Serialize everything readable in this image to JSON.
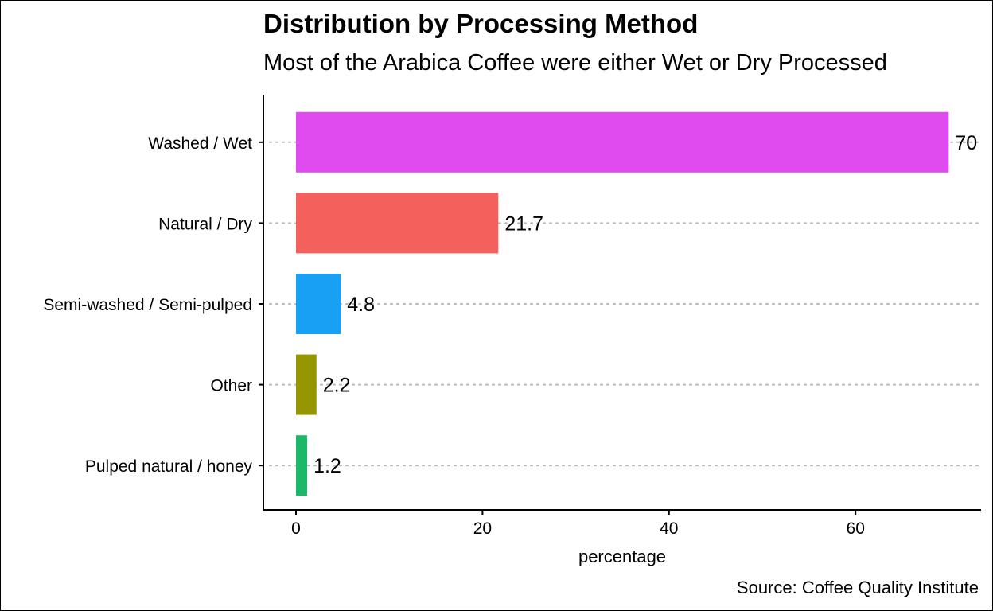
{
  "chart_data": {
    "type": "bar",
    "orientation": "horizontal",
    "title": "Distribution by Processing Method",
    "subtitle": "Most of the Arabica Coffee were either Wet or Dry Processed",
    "caption": "Source: Coffee Quality Institute",
    "xlabel": "percentage",
    "ylabel": "",
    "xlim": [
      0,
      73
    ],
    "x_ticks": [
      "0",
      "20",
      "40",
      "60"
    ],
    "x_tick_values": [
      0,
      20,
      40,
      60
    ],
    "categories": [
      "Washed / Wet",
      "Natural / Dry",
      "Semi-washed / Semi-pulped",
      "Other",
      "Pulped natural / honey"
    ],
    "values": [
      70,
      21.7,
      4.8,
      2.2,
      1.2
    ],
    "data_labels": [
      "70",
      "21.7",
      "4.8",
      "2.2",
      "1.2"
    ],
    "colors": [
      "#e04bf0",
      "#f4605c",
      "#18a0f4",
      "#959600",
      "#1bb86a"
    ],
    "grid": "dotted horizontal lines at categories",
    "legend": "none"
  }
}
